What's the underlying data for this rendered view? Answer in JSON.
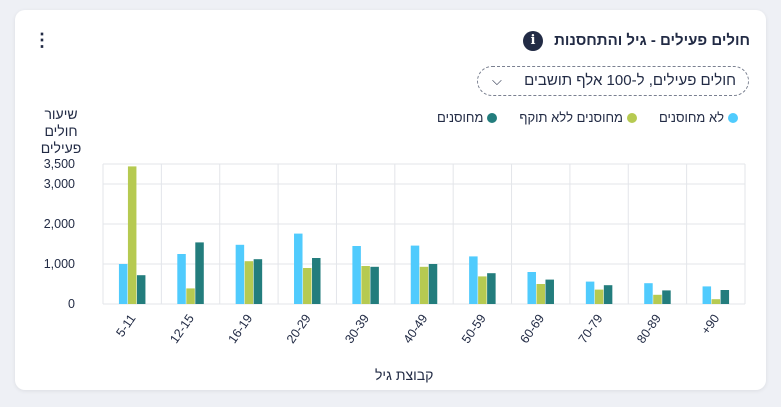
{
  "header": {
    "title": "חולים פעילים - גיל והתחסנות",
    "info_icon": "info-icon",
    "menu_icon": "kebab-menu-icon"
  },
  "dropdown": {
    "selected": "חולים פעילים, ל-100 אלף תושבים",
    "icon": "chevron-down-icon"
  },
  "colors": {
    "unvaccinated": "#50cbfd",
    "expired": "#b6ca51",
    "vaccinated": "#237d7d"
  },
  "chart_data": {
    "type": "bar",
    "ylabel": "שיעור חולים פעילים",
    "xlabel": "קבוצת גיל",
    "ylim": [
      0,
      3500
    ],
    "yticks": [
      0,
      1000,
      2000,
      3000,
      3500
    ],
    "ytick_labels": [
      "0",
      "1,000",
      "2,000",
      "3,000",
      "3,500"
    ],
    "grid": true,
    "legend_position": "top-right",
    "categories": [
      "5-11",
      "12-15",
      "16-19",
      "20-29",
      "30-39",
      "40-49",
      "50-59",
      "60-69",
      "70-79",
      "80-89",
      "+90"
    ],
    "series": [
      {
        "name": "לא מחוסנים",
        "color": "#50cbfd",
        "values": [
          1000,
          1250,
          1480,
          1760,
          1450,
          1460,
          1190,
          800,
          560,
          520,
          440
        ]
      },
      {
        "name": "מחוסנים ללא תוקף",
        "color": "#b6ca51",
        "values": [
          3440,
          390,
          1070,
          900,
          950,
          930,
          690,
          500,
          360,
          230,
          120
        ]
      },
      {
        "name": "מחוסנים",
        "color": "#237d7d",
        "values": [
          720,
          1540,
          1120,
          1150,
          930,
          1000,
          770,
          610,
          470,
          340,
          350
        ]
      }
    ]
  }
}
